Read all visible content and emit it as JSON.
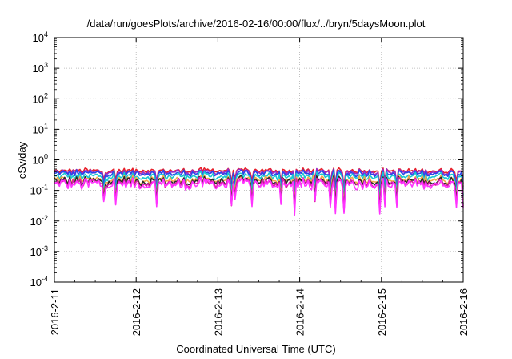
{
  "chart_data": {
    "type": "line",
    "title": "/data/run/goesPlots/archive/2016-02-16/00:00/flux/../bryn/5daysMoon.plot",
    "xlabel": "Coordinated Universal Time (UTC)",
    "ylabel": "cSv/day",
    "yscale": "log",
    "ylim": [
      0.0001,
      10000
    ],
    "y_ticks": [
      {
        "value": 0.0001,
        "label": "10-4",
        "base": "10",
        "exp": "-4"
      },
      {
        "value": 0.001,
        "label": "10-3",
        "base": "10",
        "exp": "-3"
      },
      {
        "value": 0.01,
        "label": "10-2",
        "base": "10",
        "exp": "-2"
      },
      {
        "value": 0.1,
        "label": "10-1",
        "base": "10",
        "exp": "-1"
      },
      {
        "value": 1,
        "label": "100",
        "base": "10",
        "exp": "0"
      },
      {
        "value": 10,
        "label": "101",
        "base": "10",
        "exp": "1"
      },
      {
        "value": 100,
        "label": "102",
        "base": "10",
        "exp": "2"
      },
      {
        "value": 1000,
        "label": "103",
        "base": "10",
        "exp": "3"
      },
      {
        "value": 10000,
        "label": "104",
        "base": "10",
        "exp": "4"
      }
    ],
    "xlim": [
      "2016-02-11",
      "2016-02-16"
    ],
    "x_ticks": [
      "2016-2-11",
      "2016-2-12",
      "2016-2-13",
      "2016-2-14",
      "2016-2-15",
      "2016-2-16"
    ],
    "grid": true,
    "series": [
      {
        "color": "#e8202a",
        "base": 0.44
      },
      {
        "color": "#9a2ac8",
        "base": 0.4
      },
      {
        "color": "#2b46e8",
        "base": 0.36
      },
      {
        "color": "#19c8d0",
        "base": 0.29
      },
      {
        "color": "#f2a94a",
        "base": 0.225
      },
      {
        "color": "#2a2a2a",
        "base": 0.2
      },
      {
        "color": "#e01aa8",
        "base": 0.178
      },
      {
        "color": "#ff33ff",
        "base": 0.16
      }
    ]
  }
}
